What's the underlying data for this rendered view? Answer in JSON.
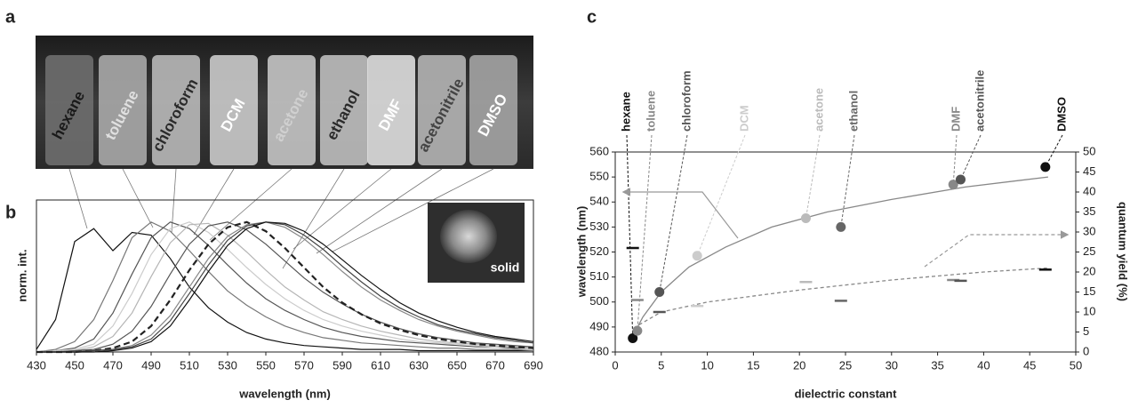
{
  "panel_a": {
    "letter": "a",
    "labels": [
      "hexane",
      "toluene",
      "chloroform",
      "DCM",
      "acetone",
      "ethanol",
      "DMF",
      "acetonitrile",
      "DMSO"
    ]
  },
  "chart_data": [
    {
      "type": "line",
      "letter": "b",
      "xlabel": "wavelength (nm)",
      "ylabel": "norm. int.",
      "xlim": [
        430,
        690
      ],
      "xticks": [
        430,
        450,
        470,
        490,
        510,
        530,
        550,
        570,
        590,
        610,
        630,
        650,
        670,
        690
      ],
      "ylim": [
        0,
        1.17
      ],
      "x": [
        430,
        440,
        450,
        460,
        470,
        480,
        490,
        500,
        510,
        520,
        530,
        540,
        550,
        560,
        570,
        580,
        590,
        600,
        610,
        620,
        630,
        640,
        650,
        660,
        670,
        680,
        690
      ],
      "series": [
        {
          "name": "hexane",
          "color": "#111111",
          "values": [
            0.02,
            0.25,
            0.85,
            0.95,
            0.78,
            0.92,
            0.9,
            0.72,
            0.5,
            0.34,
            0.23,
            0.15,
            0.1,
            0.07,
            0.05,
            0.04,
            0.03,
            0.02,
            0.02,
            0.02,
            0.01,
            0.01,
            0.01,
            0.01,
            0.01,
            0.01,
            0.01
          ]
        },
        {
          "name": "toluene",
          "color": "#777777",
          "values": [
            0,
            0.02,
            0.08,
            0.25,
            0.55,
            0.88,
            1.0,
            0.93,
            0.78,
            0.62,
            0.47,
            0.36,
            0.27,
            0.2,
            0.15,
            0.11,
            0.09,
            0.07,
            0.06,
            0.05,
            0.04,
            0.03,
            0.03,
            0.02,
            0.02,
            0.02,
            0.01
          ]
        },
        {
          "name": "chloroform",
          "color": "#555555",
          "values": [
            0,
            0.01,
            0.03,
            0.1,
            0.3,
            0.6,
            0.88,
            1.0,
            0.95,
            0.82,
            0.67,
            0.53,
            0.41,
            0.32,
            0.25,
            0.19,
            0.15,
            0.12,
            0.1,
            0.08,
            0.07,
            0.06,
            0.05,
            0.04,
            0.04,
            0.03,
            0.03
          ]
        },
        {
          "name": "DCM",
          "color": "#cccccc",
          "values": [
            0,
            0.01,
            0.02,
            0.06,
            0.2,
            0.45,
            0.75,
            0.95,
            1.0,
            0.92,
            0.79,
            0.65,
            0.52,
            0.41,
            0.32,
            0.25,
            0.2,
            0.16,
            0.13,
            0.1,
            0.08,
            0.07,
            0.06,
            0.05,
            0.04,
            0.04,
            0.03
          ]
        },
        {
          "name": "acetone",
          "color": "#b5b5b5",
          "values": [
            0,
            0,
            0.01,
            0.04,
            0.12,
            0.3,
            0.58,
            0.84,
            0.98,
            0.99,
            0.9,
            0.77,
            0.63,
            0.5,
            0.4,
            0.31,
            0.25,
            0.2,
            0.16,
            0.13,
            0.1,
            0.08,
            0.07,
            0.06,
            0.05,
            0.04,
            0.04
          ]
        },
        {
          "name": "ethanol",
          "color": "#555555",
          "values": [
            0,
            0,
            0.01,
            0.02,
            0.06,
            0.16,
            0.35,
            0.6,
            0.83,
            0.97,
            1.0,
            0.94,
            0.83,
            0.7,
            0.57,
            0.46,
            0.37,
            0.29,
            0.23,
            0.18,
            0.14,
            0.11,
            0.09,
            0.07,
            0.06,
            0.05,
            0.04
          ]
        },
        {
          "name": "solid",
          "color": "#222222",
          "dashed": true,
          "values": [
            0,
            0,
            0,
            0.01,
            0.03,
            0.08,
            0.2,
            0.4,
            0.63,
            0.83,
            0.96,
            1.0,
            0.93,
            0.8,
            0.65,
            0.5,
            0.38,
            0.29,
            0.22,
            0.17,
            0.13,
            0.1,
            0.08,
            0.06,
            0.05,
            0.04,
            0.03
          ]
        },
        {
          "name": "DMF",
          "color": "#888888",
          "values": [
            0,
            0,
            0,
            0.01,
            0.02,
            0.05,
            0.13,
            0.28,
            0.5,
            0.72,
            0.89,
            0.98,
            1.0,
            0.96,
            0.87,
            0.75,
            0.62,
            0.5,
            0.4,
            0.32,
            0.25,
            0.2,
            0.16,
            0.13,
            0.1,
            0.08,
            0.07
          ]
        },
        {
          "name": "acetonitrile",
          "color": "#444444",
          "values": [
            0,
            0,
            0,
            0.01,
            0.02,
            0.04,
            0.1,
            0.24,
            0.45,
            0.67,
            0.86,
            0.97,
            1.0,
            0.98,
            0.9,
            0.79,
            0.66,
            0.54,
            0.43,
            0.34,
            0.27,
            0.21,
            0.17,
            0.14,
            0.11,
            0.09,
            0.07
          ]
        },
        {
          "name": "DMSO",
          "color": "#111111",
          "values": [
            0,
            0,
            0,
            0,
            0.01,
            0.03,
            0.08,
            0.2,
            0.4,
            0.62,
            0.82,
            0.95,
            1.0,
            0.99,
            0.93,
            0.83,
            0.71,
            0.59,
            0.48,
            0.38,
            0.3,
            0.24,
            0.19,
            0.15,
            0.12,
            0.1,
            0.08
          ]
        }
      ]
    },
    {
      "type": "scatter",
      "letter": "c",
      "xlabel": "dielectric constant",
      "ylabel": "wavelength (nm)",
      "y2label": "quantum yield (%)",
      "xlim": [
        0,
        50
      ],
      "xticks": [
        0,
        5,
        10,
        15,
        20,
        25,
        30,
        35,
        40,
        45,
        50
      ],
      "ylim": [
        480,
        560
      ],
      "yticks": [
        480,
        490,
        500,
        510,
        520,
        530,
        540,
        550,
        560
      ],
      "y2lim": [
        0,
        50
      ],
      "y2ticks": [
        0,
        5,
        10,
        15,
        20,
        25,
        30,
        35,
        40,
        45,
        50
      ],
      "labels": [
        "hexane",
        "toluene",
        "chloroform",
        "DCM",
        "acetone",
        "ethanol",
        "DMF",
        "acetonitrile",
        "DMSO"
      ],
      "colors": [
        "#111111",
        "#888888",
        "#555555",
        "#cccccc",
        "#bbbbbb",
        "#666666",
        "#888888",
        "#555555",
        "#111111"
      ],
      "x": [
        1.9,
        2.4,
        4.8,
        8.9,
        20.7,
        24.5,
        36.7,
        37.5,
        46.7
      ],
      "series": [
        {
          "marker": "circle",
          "values": [
            485.5,
            488.5,
            504,
            518.5,
            533.5,
            530,
            547,
            549,
            554
          ]
        },
        {
          "marker": "dash",
          "axis": "y2",
          "values": [
            26,
            13,
            10,
            11.5,
            17.5,
            12.8,
            18,
            17.8,
            20.6
          ]
        }
      ],
      "fits": [
        {
          "axis": "y",
          "color": "#888888",
          "x": [
            2,
            3,
            5,
            8,
            12,
            17,
            23,
            30,
            38,
            47
          ],
          "values": [
            487,
            494,
            504,
            514,
            522,
            530,
            536,
            541,
            546,
            550
          ]
        },
        {
          "axis": "y2",
          "color": "#888888",
          "dashed": true,
          "x": [
            2,
            5,
            10,
            20,
            30,
            40,
            47
          ],
          "values": [
            6,
            10,
            12.5,
            15.5,
            18,
            20,
            21
          ]
        }
      ]
    }
  ]
}
